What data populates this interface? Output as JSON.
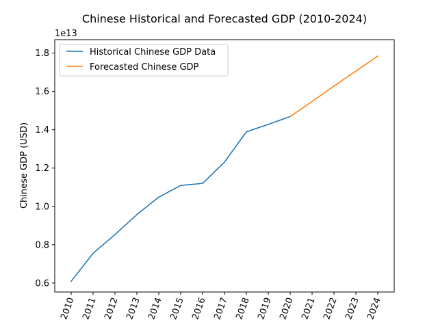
{
  "chart_data": {
    "type": "line",
    "title": "Chinese Historical and Forecasted GDP (2010-2024)",
    "xlabel": "",
    "ylabel": "Chinese GDP (USD)",
    "y_offset_label": "1e13",
    "x_tick_rotation": 70,
    "xlim": [
      2009.25,
      2024.75
    ],
    "ylim": [
      5.53,
      18.7
    ],
    "y_scale_factor": 10000000000000.0,
    "x_ticks": [
      "2010",
      "2011",
      "2012",
      "2013",
      "2014",
      "2015",
      "2016",
      "2017",
      "2018",
      "2019",
      "2020",
      "2021",
      "2022",
      "2023",
      "2024"
    ],
    "y_ticks": [
      "0.6",
      "0.8",
      "1.0",
      "1.2",
      "1.4",
      "1.6",
      "1.8"
    ],
    "y_tick_values": [
      6,
      8,
      10,
      12,
      14,
      16,
      18
    ],
    "legend_position": "upper-left",
    "grid": false,
    "series": [
      {
        "name": "Historical Chinese GDP Data",
        "color": "#1f77b4",
        "x": [
          2010,
          2011,
          2012,
          2013,
          2014,
          2015,
          2016,
          2017,
          2018,
          2019,
          2020
        ],
        "y": [
          6.09,
          7.55,
          8.53,
          9.57,
          10.48,
          11.09,
          11.2,
          12.31,
          13.89,
          14.28,
          14.69
        ]
      },
      {
        "name": "Forecasted Chinese GDP",
        "color": "#ff7f0e",
        "x": [
          2020,
          2021,
          2022,
          2023,
          2024
        ],
        "y": [
          14.69,
          15.47,
          16.28,
          17.06,
          17.84
        ]
      }
    ]
  }
}
